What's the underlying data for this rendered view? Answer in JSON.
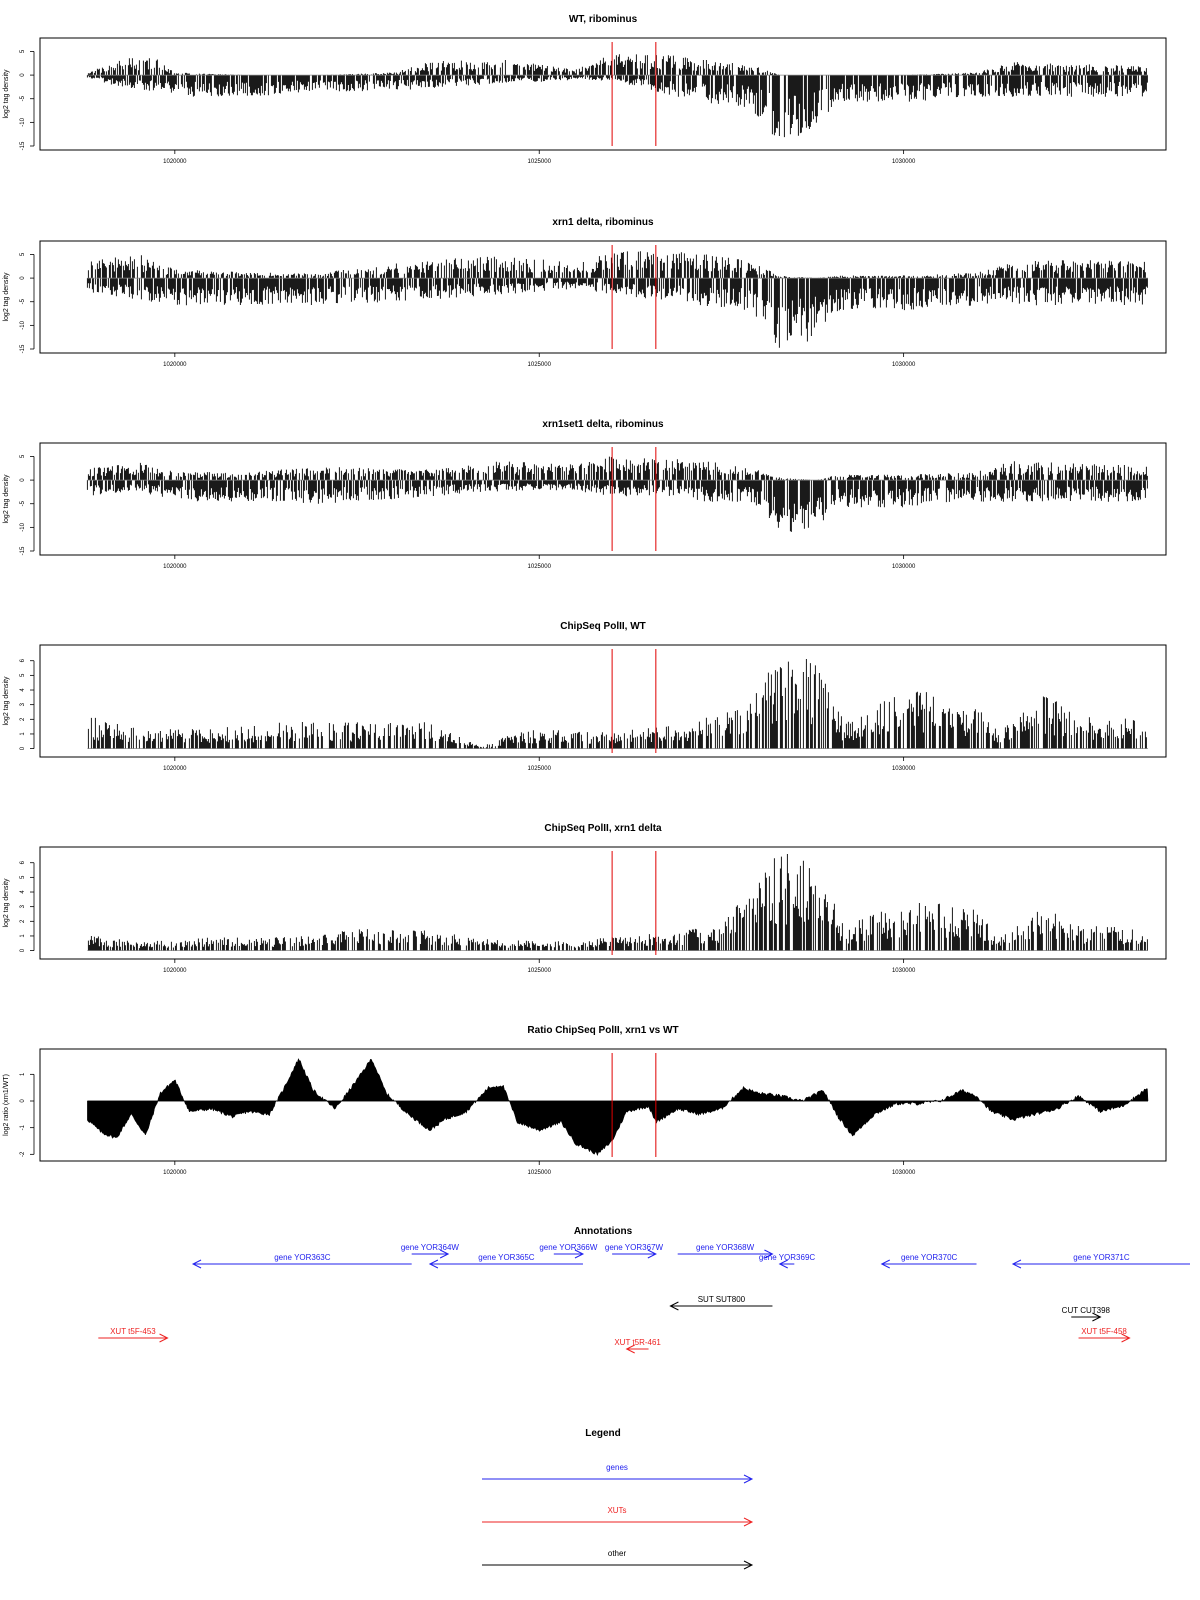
{
  "colors": {
    "track": "#000000",
    "marker": "#e00000",
    "gene": "#2222ee",
    "xut": "#ee2222",
    "other": "#000000"
  },
  "chart_data": [
    {
      "type": "bar",
      "title": "WT, ribominus",
      "ylabel": "log2 tag density",
      "ylim": [
        -15,
        7
      ],
      "yticks": [
        "5",
        "0",
        "-5",
        "-10",
        "-15"
      ],
      "yticks_values": [
        5,
        0,
        -5,
        -10,
        -15
      ],
      "xlim": [
        1018150,
        1033600
      ],
      "xticks": [
        "1020000",
        "1025000",
        "1030000"
      ],
      "xticks_values": [
        1020000,
        1025000,
        1030000
      ],
      "markers_x": [
        1026000,
        1026600
      ],
      "data_extent": [
        1018800,
        1033800
      ],
      "signal_profile": [
        {
          "x": 1018800,
          "pos": 0.3,
          "neg": -0.5
        },
        {
          "x": 1019200,
          "pos": 3,
          "neg": -2
        },
        {
          "x": 1019700,
          "pos": 3.5,
          "neg": -3
        },
        {
          "x": 1020000,
          "pos": 0.5,
          "neg": -4
        },
        {
          "x": 1021000,
          "pos": 0,
          "neg": -4
        },
        {
          "x": 1022000,
          "pos": 0,
          "neg": -3
        },
        {
          "x": 1023000,
          "pos": 0.5,
          "neg": -3
        },
        {
          "x": 1023500,
          "pos": 2.5,
          "neg": -2.5
        },
        {
          "x": 1024500,
          "pos": 3,
          "neg": -1.5
        },
        {
          "x": 1025500,
          "pos": 1,
          "neg": -1
        },
        {
          "x": 1026000,
          "pos": 4,
          "neg": -1
        },
        {
          "x": 1026600,
          "pos": 4,
          "neg": -3
        },
        {
          "x": 1027200,
          "pos": 3,
          "neg": -5
        },
        {
          "x": 1027900,
          "pos": 2,
          "neg": -6
        },
        {
          "x": 1028300,
          "pos": 0,
          "neg": -13
        },
        {
          "x": 1028800,
          "pos": 0,
          "neg": -10
        },
        {
          "x": 1029100,
          "pos": 0,
          "neg": -5
        },
        {
          "x": 1030000,
          "pos": 0,
          "neg": -5
        },
        {
          "x": 1031000,
          "pos": 0.5,
          "neg": -4
        },
        {
          "x": 1031500,
          "pos": 2.5,
          "neg": -4
        },
        {
          "x": 1032500,
          "pos": 2,
          "neg": -4
        },
        {
          "x": 1033800,
          "pos": 1.5,
          "neg": -4
        }
      ]
    },
    {
      "type": "bar",
      "title": "xrn1 delta, ribominus",
      "ylabel": "log2 tag density",
      "ylim": [
        -15,
        7
      ],
      "yticks": [
        "5",
        "0",
        "-5",
        "-10",
        "-15"
      ],
      "yticks_values": [
        5,
        0,
        -5,
        -10,
        -15
      ],
      "xlim": [
        1018150,
        1033600
      ],
      "xticks": [
        "1020000",
        "1025000",
        "1030000"
      ],
      "xticks_values": [
        1020000,
        1025000,
        1030000
      ],
      "markers_x": [
        1026000,
        1026600
      ],
      "data_extent": [
        1018800,
        1033800
      ],
      "signal_profile": [
        {
          "x": 1018800,
          "pos": 3,
          "neg": -3
        },
        {
          "x": 1019500,
          "pos": 4.5,
          "neg": -4
        },
        {
          "x": 1019900,
          "pos": 2,
          "neg": -5
        },
        {
          "x": 1021000,
          "pos": 1,
          "neg": -5
        },
        {
          "x": 1022000,
          "pos": 1,
          "neg": -5
        },
        {
          "x": 1023500,
          "pos": 3.5,
          "neg": -4
        },
        {
          "x": 1024500,
          "pos": 4,
          "neg": -3
        },
        {
          "x": 1025500,
          "pos": 3,
          "neg": -2
        },
        {
          "x": 1026000,
          "pos": 5,
          "neg": -3
        },
        {
          "x": 1026600,
          "pos": 5,
          "neg": -4
        },
        {
          "x": 1027200,
          "pos": 5,
          "neg": -5
        },
        {
          "x": 1027900,
          "pos": 3,
          "neg": -6
        },
        {
          "x": 1028300,
          "pos": 0.5,
          "neg": -14
        },
        {
          "x": 1028800,
          "pos": 0,
          "neg": -11
        },
        {
          "x": 1029100,
          "pos": 0.5,
          "neg": -6
        },
        {
          "x": 1030000,
          "pos": 0.5,
          "neg": -6
        },
        {
          "x": 1031000,
          "pos": 1,
          "neg": -5
        },
        {
          "x": 1031500,
          "pos": 3,
          "neg": -5
        },
        {
          "x": 1032500,
          "pos": 3.5,
          "neg": -5
        },
        {
          "x": 1033800,
          "pos": 3,
          "neg": -5
        }
      ]
    },
    {
      "type": "bar",
      "title": "xrn1set1 delta, ribominus",
      "ylabel": "log2 tag density",
      "ylim": [
        -15,
        7
      ],
      "yticks": [
        "5",
        "0",
        "-5",
        "-10",
        "-15"
      ],
      "yticks_values": [
        5,
        0,
        -5,
        -10,
        -15
      ],
      "xlim": [
        1018150,
        1033600
      ],
      "xticks": [
        "1020000",
        "1025000",
        "1030000"
      ],
      "xticks_values": [
        1020000,
        1025000,
        1030000
      ],
      "markers_x": [
        1026000,
        1026600
      ],
      "data_extent": [
        1018800,
        1033800
      ],
      "signal_profile": [
        {
          "x": 1018800,
          "pos": 2.5,
          "neg": -3
        },
        {
          "x": 1019500,
          "pos": 3.5,
          "neg": -2
        },
        {
          "x": 1020000,
          "pos": 1.5,
          "neg": -4
        },
        {
          "x": 1021000,
          "pos": 1.5,
          "neg": -4
        },
        {
          "x": 1022000,
          "pos": 2.5,
          "neg": -4.5
        },
        {
          "x": 1023500,
          "pos": 2,
          "neg": -3
        },
        {
          "x": 1024500,
          "pos": 3.5,
          "neg": -2
        },
        {
          "x": 1025500,
          "pos": 3,
          "neg": -2
        },
        {
          "x": 1026000,
          "pos": 4.5,
          "neg": -3
        },
        {
          "x": 1026600,
          "pos": 4,
          "neg": -3
        },
        {
          "x": 1027200,
          "pos": 4,
          "neg": -4
        },
        {
          "x": 1027900,
          "pos": 2.5,
          "neg": -4
        },
        {
          "x": 1028300,
          "pos": 0.5,
          "neg": -10
        },
        {
          "x": 1028800,
          "pos": 0,
          "neg": -9
        },
        {
          "x": 1029100,
          "pos": 1,
          "neg": -5
        },
        {
          "x": 1030000,
          "pos": 1,
          "neg": -5
        },
        {
          "x": 1031000,
          "pos": 1.5,
          "neg": -4
        },
        {
          "x": 1031500,
          "pos": 3.5,
          "neg": -4
        },
        {
          "x": 1032500,
          "pos": 3,
          "neg": -4
        },
        {
          "x": 1033800,
          "pos": 2.5,
          "neg": -4
        }
      ]
    },
    {
      "type": "bar",
      "title": "ChipSeq PolII, WT",
      "ylabel": "log2 tag density",
      "ylim": [
        -0.3,
        6.8
      ],
      "yticks": [
        "0",
        "1",
        "2",
        "3",
        "4",
        "5",
        "6"
      ],
      "yticks_values": [
        0,
        1,
        2,
        3,
        4,
        5,
        6
      ],
      "xlim": [
        1018150,
        1033600
      ],
      "xticks": [
        "1020000",
        "1025000",
        "1030000"
      ],
      "xticks_values": [
        1020000,
        1025000,
        1030000
      ],
      "markers_x": [
        1026000,
        1026600
      ],
      "data_extent": [
        1018800,
        1033800
      ],
      "signal_profile": [
        {
          "x": 1018800,
          "pos": 2,
          "neg": 0
        },
        {
          "x": 1019500,
          "pos": 1.2,
          "neg": 0
        },
        {
          "x": 1020500,
          "pos": 1.2,
          "neg": 0
        },
        {
          "x": 1021500,
          "pos": 1.6,
          "neg": 0
        },
        {
          "x": 1022500,
          "pos": 1.6,
          "neg": 0
        },
        {
          "x": 1023500,
          "pos": 1.6,
          "neg": 0
        },
        {
          "x": 1024200,
          "pos": 0.1,
          "neg": 0
        },
        {
          "x": 1024800,
          "pos": 1.2,
          "neg": 0
        },
        {
          "x": 1026000,
          "pos": 1,
          "neg": 0
        },
        {
          "x": 1027000,
          "pos": 1.5,
          "neg": 0
        },
        {
          "x": 1027800,
          "pos": 2.5,
          "neg": 0
        },
        {
          "x": 1028300,
          "pos": 6.2,
          "neg": 0
        },
        {
          "x": 1028800,
          "pos": 5,
          "neg": 0
        },
        {
          "x": 1029200,
          "pos": 1.5,
          "neg": 0
        },
        {
          "x": 1029800,
          "pos": 3,
          "neg": 0
        },
        {
          "x": 1030300,
          "pos": 3.5,
          "neg": 0
        },
        {
          "x": 1031000,
          "pos": 2.5,
          "neg": 0
        },
        {
          "x": 1031300,
          "pos": 1,
          "neg": 0
        },
        {
          "x": 1031900,
          "pos": 3.2,
          "neg": 0
        },
        {
          "x": 1032500,
          "pos": 2,
          "neg": 0
        },
        {
          "x": 1033800,
          "pos": 1.5,
          "neg": 0
        }
      ]
    },
    {
      "type": "bar",
      "title": "ChipSeq PolII, xrn1 delta",
      "ylabel": "log2 tag density",
      "ylim": [
        -0.3,
        6.8
      ],
      "yticks": [
        "0",
        "1",
        "2",
        "3",
        "4",
        "5",
        "6"
      ],
      "yticks_values": [
        0,
        1,
        2,
        3,
        4,
        5,
        6
      ],
      "xlim": [
        1018150,
        1033600
      ],
      "xticks": [
        "1020000",
        "1025000",
        "1030000"
      ],
      "xticks_values": [
        1020000,
        1025000,
        1030000
      ],
      "markers_x": [
        1026000,
        1026600
      ],
      "data_extent": [
        1018800,
        1033800
      ],
      "signal_profile": [
        {
          "x": 1018800,
          "pos": 1,
          "neg": 0
        },
        {
          "x": 1019500,
          "pos": 0.5,
          "neg": 0
        },
        {
          "x": 1020500,
          "pos": 0.8,
          "neg": 0
        },
        {
          "x": 1021500,
          "pos": 0.8,
          "neg": 0
        },
        {
          "x": 1022500,
          "pos": 1.3,
          "neg": 0
        },
        {
          "x": 1023500,
          "pos": 1.2,
          "neg": 0
        },
        {
          "x": 1024500,
          "pos": 0.6,
          "neg": 0
        },
        {
          "x": 1025500,
          "pos": 0.6,
          "neg": 0
        },
        {
          "x": 1026500,
          "pos": 1,
          "neg": 0
        },
        {
          "x": 1027500,
          "pos": 1.5,
          "neg": 0
        },
        {
          "x": 1028300,
          "pos": 6,
          "neg": 0
        },
        {
          "x": 1028800,
          "pos": 5,
          "neg": 0
        },
        {
          "x": 1029200,
          "pos": 1.5,
          "neg": 0
        },
        {
          "x": 1029800,
          "pos": 2.5,
          "neg": 0
        },
        {
          "x": 1030300,
          "pos": 3,
          "neg": 0
        },
        {
          "x": 1031000,
          "pos": 2.5,
          "neg": 0
        },
        {
          "x": 1031300,
          "pos": 0.8,
          "neg": 0
        },
        {
          "x": 1031900,
          "pos": 2.5,
          "neg": 0
        },
        {
          "x": 1032500,
          "pos": 1.5,
          "neg": 0
        },
        {
          "x": 1033800,
          "pos": 1.2,
          "neg": 0
        }
      ]
    },
    {
      "type": "area",
      "title": "Ratio ChipSeq PolII, xrn1 vs WT",
      "ylabel": "log2 ratio (xrn1/WT)",
      "ylim": [
        -2.1,
        1.8
      ],
      "yticks": [
        "-2",
        "-1",
        "0",
        "1"
      ],
      "yticks_values": [
        -2,
        -1,
        0,
        1
      ],
      "xlim": [
        1018150,
        1033600
      ],
      "xticks": [
        "1020000",
        "1025000",
        "1030000"
      ],
      "xticks_values": [
        1020000,
        1025000,
        1030000
      ],
      "markers_x": [
        1026000,
        1026600
      ],
      "data_extent": [
        1018800,
        1033800
      ],
      "curve": [
        [
          1018800,
          -0.7
        ],
        [
          1019000,
          -1.2
        ],
        [
          1019200,
          -1.4
        ],
        [
          1019400,
          -0.5
        ],
        [
          1019600,
          -1.3
        ],
        [
          1019800,
          0.3
        ],
        [
          1020000,
          0.8
        ],
        [
          1020200,
          -0.4
        ],
        [
          1020500,
          -0.3
        ],
        [
          1020800,
          -0.6
        ],
        [
          1021000,
          -0.4
        ],
        [
          1021300,
          -0.5
        ],
        [
          1021500,
          0.5
        ],
        [
          1021700,
          1.6
        ],
        [
          1021900,
          0.4
        ],
        [
          1022200,
          -0.3
        ],
        [
          1022500,
          0.8
        ],
        [
          1022700,
          1.6
        ],
        [
          1022900,
          0.3
        ],
        [
          1023200,
          -0.5
        ],
        [
          1023500,
          -1.1
        ],
        [
          1023700,
          -0.7
        ],
        [
          1024000,
          -0.4
        ],
        [
          1024300,
          0.5
        ],
        [
          1024500,
          0.6
        ],
        [
          1024700,
          -0.8
        ],
        [
          1025000,
          -1.1
        ],
        [
          1025300,
          -0.8
        ],
        [
          1025500,
          -1.6
        ],
        [
          1025800,
          -2.0
        ],
        [
          1026000,
          -1.5
        ],
        [
          1026200,
          -0.4
        ],
        [
          1026500,
          -0.2
        ],
        [
          1026600,
          -0.8
        ],
        [
          1026900,
          -0.3
        ],
        [
          1027200,
          -0.5
        ],
        [
          1027500,
          -0.3
        ],
        [
          1027800,
          0.5
        ],
        [
          1028000,
          0.3
        ],
        [
          1028300,
          0.2
        ],
        [
          1028600,
          0.0
        ],
        [
          1028900,
          0.4
        ],
        [
          1029100,
          -0.6
        ],
        [
          1029300,
          -1.3
        ],
        [
          1029600,
          -0.5
        ],
        [
          1029900,
          -0.1
        ],
        [
          1030200,
          -0.1
        ],
        [
          1030500,
          0.0
        ],
        [
          1030800,
          0.4
        ],
        [
          1031000,
          0.2
        ],
        [
          1031200,
          -0.4
        ],
        [
          1031500,
          -0.7
        ],
        [
          1031800,
          -0.5
        ],
        [
          1032100,
          -0.3
        ],
        [
          1032400,
          0.2
        ],
        [
          1032700,
          -0.4
        ],
        [
          1033000,
          -0.2
        ],
        [
          1033300,
          0.4
        ],
        [
          1033500,
          0.8
        ],
        [
          1033800,
          0.5
        ]
      ]
    }
  ],
  "annotations": {
    "title": "Annotations",
    "items": [
      {
        "label": "gene YOR363C",
        "category": "gene",
        "start": 1020250,
        "end": 1023250,
        "strand": "-",
        "row": 1
      },
      {
        "label": "gene YOR364W",
        "category": "gene",
        "start": 1023250,
        "end": 1023750,
        "strand": "+",
        "row": 0
      },
      {
        "label": "gene YOR365C",
        "category": "gene",
        "start": 1023500,
        "end": 1025600,
        "strand": "-",
        "row": 1
      },
      {
        "label": "gene YOR366W",
        "category": "gene",
        "start": 1025200,
        "end": 1025600,
        "strand": "+",
        "row": 0
      },
      {
        "label": "gene YOR367W",
        "category": "gene",
        "start": 1026000,
        "end": 1026600,
        "strand": "+",
        "row": 0
      },
      {
        "label": "gene YOR368W",
        "category": "gene",
        "start": 1026900,
        "end": 1028200,
        "strand": "+",
        "row": 0
      },
      {
        "label": "gene YOR369C",
        "category": "gene",
        "start": 1028300,
        "end": 1028500,
        "strand": "-",
        "row": 1
      },
      {
        "label": "gene YOR370C",
        "category": "gene",
        "start": 1029700,
        "end": 1031000,
        "strand": "-",
        "row": 1
      },
      {
        "label": "gene YOR371C",
        "category": "gene",
        "start": 1031500,
        "end": 1034200,
        "strand": "-",
        "row": 1
      },
      {
        "label": "SUT SUT800",
        "category": "other",
        "start": 1026800,
        "end": 1028200,
        "strand": "-",
        "row": 2
      },
      {
        "label": "CUT CUT398",
        "category": "other",
        "start": 1032300,
        "end": 1032700,
        "strand": "+",
        "row": 3
      },
      {
        "label": "XUT t5F-453",
        "category": "xut",
        "start": 1018950,
        "end": 1019900,
        "strand": "+",
        "row": 4
      },
      {
        "label": "XUT t5R-461",
        "category": "xut",
        "start": 1026200,
        "end": 1026500,
        "strand": "-",
        "row": 5
      },
      {
        "label": "XUT t5F-458",
        "category": "xut",
        "start": 1032400,
        "end": 1033100,
        "strand": "+",
        "row": 4
      }
    ]
  },
  "legend": {
    "title": "Legend",
    "items": [
      {
        "label": "genes",
        "category": "gene"
      },
      {
        "label": "XUTs",
        "category": "xut"
      },
      {
        "label": "other",
        "category": "other"
      }
    ]
  }
}
